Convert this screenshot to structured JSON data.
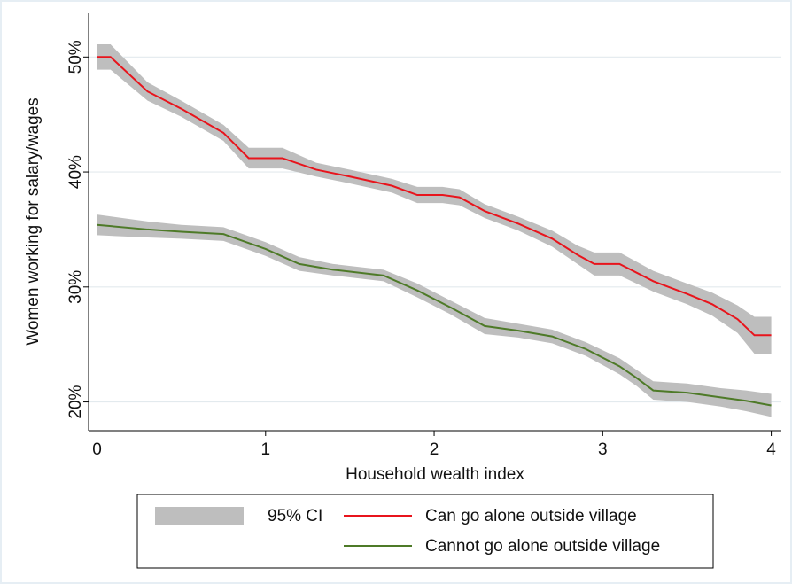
{
  "chart_data": {
    "type": "line",
    "x_label": "Household wealth index",
    "y_label": "Women working for salary/wages",
    "xlim": [
      -0.05,
      4.06
    ],
    "xticks": [
      0,
      1,
      2,
      3,
      4
    ],
    "ylim": [
      17.5,
      53.8
    ],
    "yticks": [
      {
        "value": 20,
        "label": "20%"
      },
      {
        "value": 30,
        "label": "30%"
      },
      {
        "value": 40,
        "label": "40%"
      },
      {
        "value": 50,
        "label": "50%"
      }
    ],
    "grid": true,
    "ci_label": "95% CI",
    "ci_color": "#bebebe",
    "series": [
      {
        "name": "Can go alone outside village",
        "color": "#e8141c",
        "x": [
          0,
          0.08,
          0.3,
          0.5,
          0.75,
          0.9,
          1.1,
          1.3,
          1.5,
          1.75,
          1.9,
          2.05,
          2.15,
          2.3,
          2.5,
          2.7,
          2.85,
          2.95,
          3.1,
          3.3,
          3.5,
          3.65,
          3.8,
          3.9,
          4
        ],
        "values": [
          50,
          50,
          47,
          45.5,
          43.4,
          41.2,
          41.2,
          40.2,
          39.6,
          38.8,
          38,
          38,
          37.8,
          36.6,
          35.5,
          34.2,
          32.8,
          32,
          32,
          30.5,
          29.4,
          28.5,
          27.2,
          25.8,
          25.8
        ],
        "ci_lower": [
          48.9,
          48.9,
          46.2,
          44.8,
          42.7,
          40.3,
          40.3,
          39.6,
          39,
          38.2,
          37.3,
          37.3,
          37.1,
          36,
          34.9,
          33.5,
          32,
          31,
          31,
          29.6,
          28.5,
          27.5,
          26,
          24.2,
          24.2
        ],
        "ci_upper": [
          51.1,
          51.1,
          47.8,
          46.2,
          44.1,
          42.1,
          42.1,
          40.8,
          40.2,
          39.4,
          38.7,
          38.7,
          38.5,
          37.2,
          36.1,
          34.9,
          33.6,
          33,
          33,
          31.4,
          30.3,
          29.5,
          28.4,
          27.4,
          27.4
        ]
      },
      {
        "name": "Cannot go alone outside village",
        "color": "#4e7a28",
        "x": [
          0,
          0.3,
          0.5,
          0.75,
          1,
          1.2,
          1.4,
          1.7,
          1.9,
          2.1,
          2.3,
          2.5,
          2.7,
          2.9,
          3.1,
          3.2,
          3.3,
          3.5,
          3.7,
          3.85,
          4
        ],
        "values": [
          35.4,
          35,
          34.8,
          34.6,
          33.3,
          32,
          31.5,
          31,
          29.7,
          28.2,
          26.6,
          26.2,
          25.7,
          24.6,
          23.1,
          22.1,
          21,
          20.8,
          20.4,
          20.1,
          19.7
        ],
        "ci_lower": [
          34.5,
          34.3,
          34.2,
          34,
          32.7,
          31.4,
          31,
          30.5,
          29.1,
          27.6,
          25.9,
          25.6,
          25.1,
          24,
          22.4,
          21.4,
          20.2,
          20,
          19.6,
          19.2,
          18.7
        ],
        "ci_upper": [
          36.3,
          35.7,
          35.4,
          35.2,
          33.9,
          32.6,
          32,
          31.5,
          30.3,
          28.8,
          27.3,
          26.8,
          26.3,
          25.2,
          23.8,
          22.8,
          21.8,
          21.6,
          21.2,
          21,
          20.7
        ]
      }
    ]
  }
}
